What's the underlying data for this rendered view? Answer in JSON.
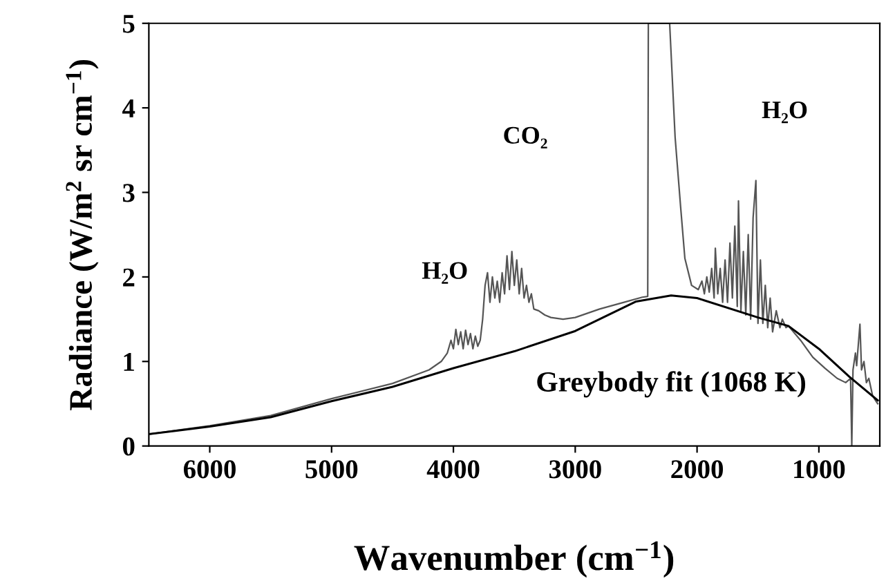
{
  "chart_data": {
    "type": "line",
    "xlabel": "Wavenumber (cm$^{−1}$)",
    "ylabel": "Radiance (W/m$^{2}$ sr cm$^{−1}$)",
    "xlim": [
      6500,
      500
    ],
    "ylim": [
      0,
      5
    ],
    "xticks": [
      6000,
      5000,
      4000,
      3000,
      2000,
      1000
    ],
    "yticks": [
      0,
      1,
      2,
      3,
      4,
      5
    ],
    "grid": false,
    "legend": false,
    "marker": "none",
    "line_style": "solid",
    "series": [
      {
        "color": "#555555",
        "x": [
          6500,
          6000,
          5500,
          5000,
          4500,
          4200,
          4100,
          4050,
          4020,
          4000,
          3980,
          3960,
          3940,
          3920,
          3900,
          3880,
          3860,
          3840,
          3820,
          3800,
          3780,
          3760,
          3740,
          3720,
          3700,
          3680,
          3660,
          3640,
          3620,
          3600,
          3580,
          3560,
          3540,
          3520,
          3500,
          3480,
          3460,
          3440,
          3420,
          3400,
          3380,
          3360,
          3340,
          3300,
          3250,
          3200,
          3100,
          3000,
          2800,
          2600,
          2450,
          2405,
          2400,
          2225,
          2180,
          2135,
          2100,
          2045,
          1990,
          1960,
          1940,
          1920,
          1900,
          1880,
          1860,
          1850,
          1830,
          1810,
          1790,
          1770,
          1750,
          1730,
          1710,
          1690,
          1670,
          1660,
          1640,
          1620,
          1600,
          1580,
          1560,
          1540,
          1517,
          1500,
          1480,
          1460,
          1440,
          1420,
          1400,
          1380,
          1350,
          1320,
          1300,
          1270,
          1250,
          1150,
          1050,
          950,
          850,
          780,
          740,
          730,
          720,
          700,
          690,
          663,
          650,
          630,
          610,
          590,
          560,
          540,
          517
        ],
        "values": [
          0.14,
          0.24,
          0.36,
          0.56,
          0.74,
          0.9,
          1.0,
          1.1,
          1.25,
          1.15,
          1.38,
          1.2,
          1.35,
          1.15,
          1.37,
          1.2,
          1.33,
          1.15,
          1.3,
          1.18,
          1.25,
          1.5,
          1.9,
          2.05,
          1.7,
          2.0,
          1.75,
          1.95,
          1.7,
          2.05,
          1.8,
          2.25,
          1.85,
          2.3,
          1.9,
          2.2,
          1.8,
          2.1,
          1.75,
          1.9,
          1.7,
          1.8,
          1.62,
          1.6,
          1.55,
          1.52,
          1.5,
          1.52,
          1.62,
          1.7,
          1.76,
          1.77,
          5,
          5,
          3.65,
          2.83,
          2.22,
          1.9,
          1.85,
          1.95,
          1.8,
          2.0,
          1.82,
          2.1,
          1.75,
          2.34,
          1.8,
          2.1,
          1.7,
          2.2,
          1.7,
          2.4,
          1.75,
          2.6,
          1.65,
          2.9,
          1.6,
          2.3,
          1.55,
          2.5,
          1.5,
          2.7,
          3.14,
          1.45,
          2.2,
          1.45,
          1.9,
          1.4,
          1.75,
          1.35,
          1.6,
          1.4,
          1.5,
          1.4,
          1.42,
          1.25,
          1.05,
          0.92,
          0.8,
          0.75,
          0.8,
          0,
          0.9,
          1.1,
          0.95,
          1.44,
          0.9,
          1.0,
          0.75,
          0.8,
          0.6,
          0.55,
          0.5
        ]
      },
      {
        "name": "Greybody fit (1068 K)",
        "color": "#000000",
        "x": [
          6500,
          6000,
          5500,
          5000,
          4500,
          4000,
          3500,
          3000,
          2500,
          2213,
          2000,
          1500,
          1250,
          1000,
          750,
          517
        ],
        "values": [
          0.14,
          0.23,
          0.34,
          0.53,
          0.7,
          0.92,
          1.12,
          1.36,
          1.71,
          1.78,
          1.75,
          1.52,
          1.42,
          1.15,
          0.82,
          0.54
        ]
      }
    ],
    "annotations": [
      "H₂O",
      "CO₂",
      "H₂O"
    ]
  }
}
